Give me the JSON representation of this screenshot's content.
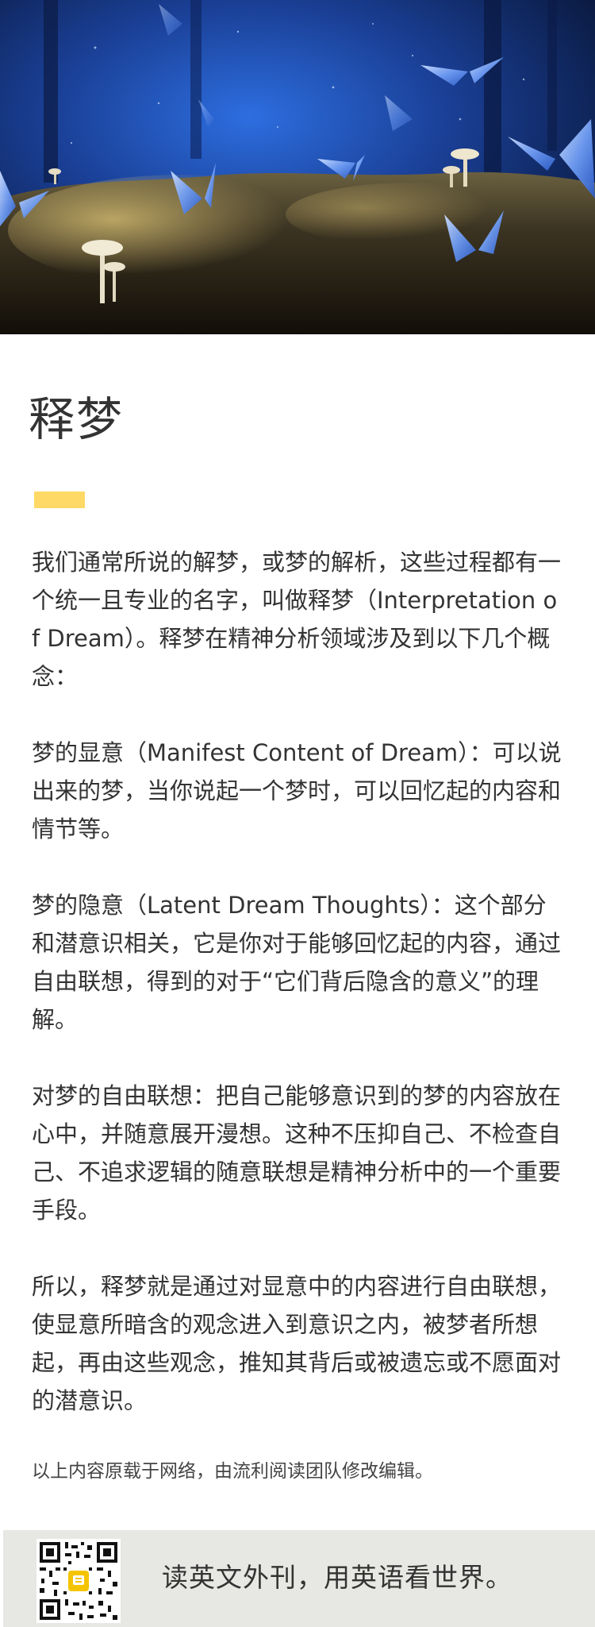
{
  "article": {
    "title": "释梦",
    "accent_color": "#ffd966",
    "paragraphs": [
      "我们通常所说的解梦，或梦的解析，这些过程都有一个统一且专业的名字，叫做释梦（Interpretation of Dream）。释梦在精神分析领域涉及到以下几个概念：",
      "梦的显意（Manifest Content of Dream）：可以说出来的梦，当你说起一个梦时，可以回忆起的内容和情节等。",
      "梦的隐意（Latent Dream Thoughts）：这个部分和潜意识相关，它是你对于能够回忆起的内容，通过自由联想，得到的对于“它们背后隐含的意义”的理解。",
      "对梦的自由联想：把自己能够意识到的梦的内容放在心中，并随意展开漫想。这种不压抑自己、不检查自己、不追求逻辑的随意联想是精神分析中的一个重要手段。",
      "所以，释梦就是通过对显意中的内容进行自由联想，使显意所暗含的观念进入到意识之内，被梦者所想起，再由这些观念，推知其背后或被遗忘或不愿面对的潜意识。"
    ],
    "source_note": "以上内容原载于网络，由流利阅读团队修改编辑。"
  },
  "hero": {
    "icon": "forest-butterflies-mushrooms-illustration"
  },
  "footer": {
    "slogan": "读英文外刊，用英语看世界。",
    "qr_icon": "qr-code-icon",
    "background": "#e7e7e3"
  }
}
